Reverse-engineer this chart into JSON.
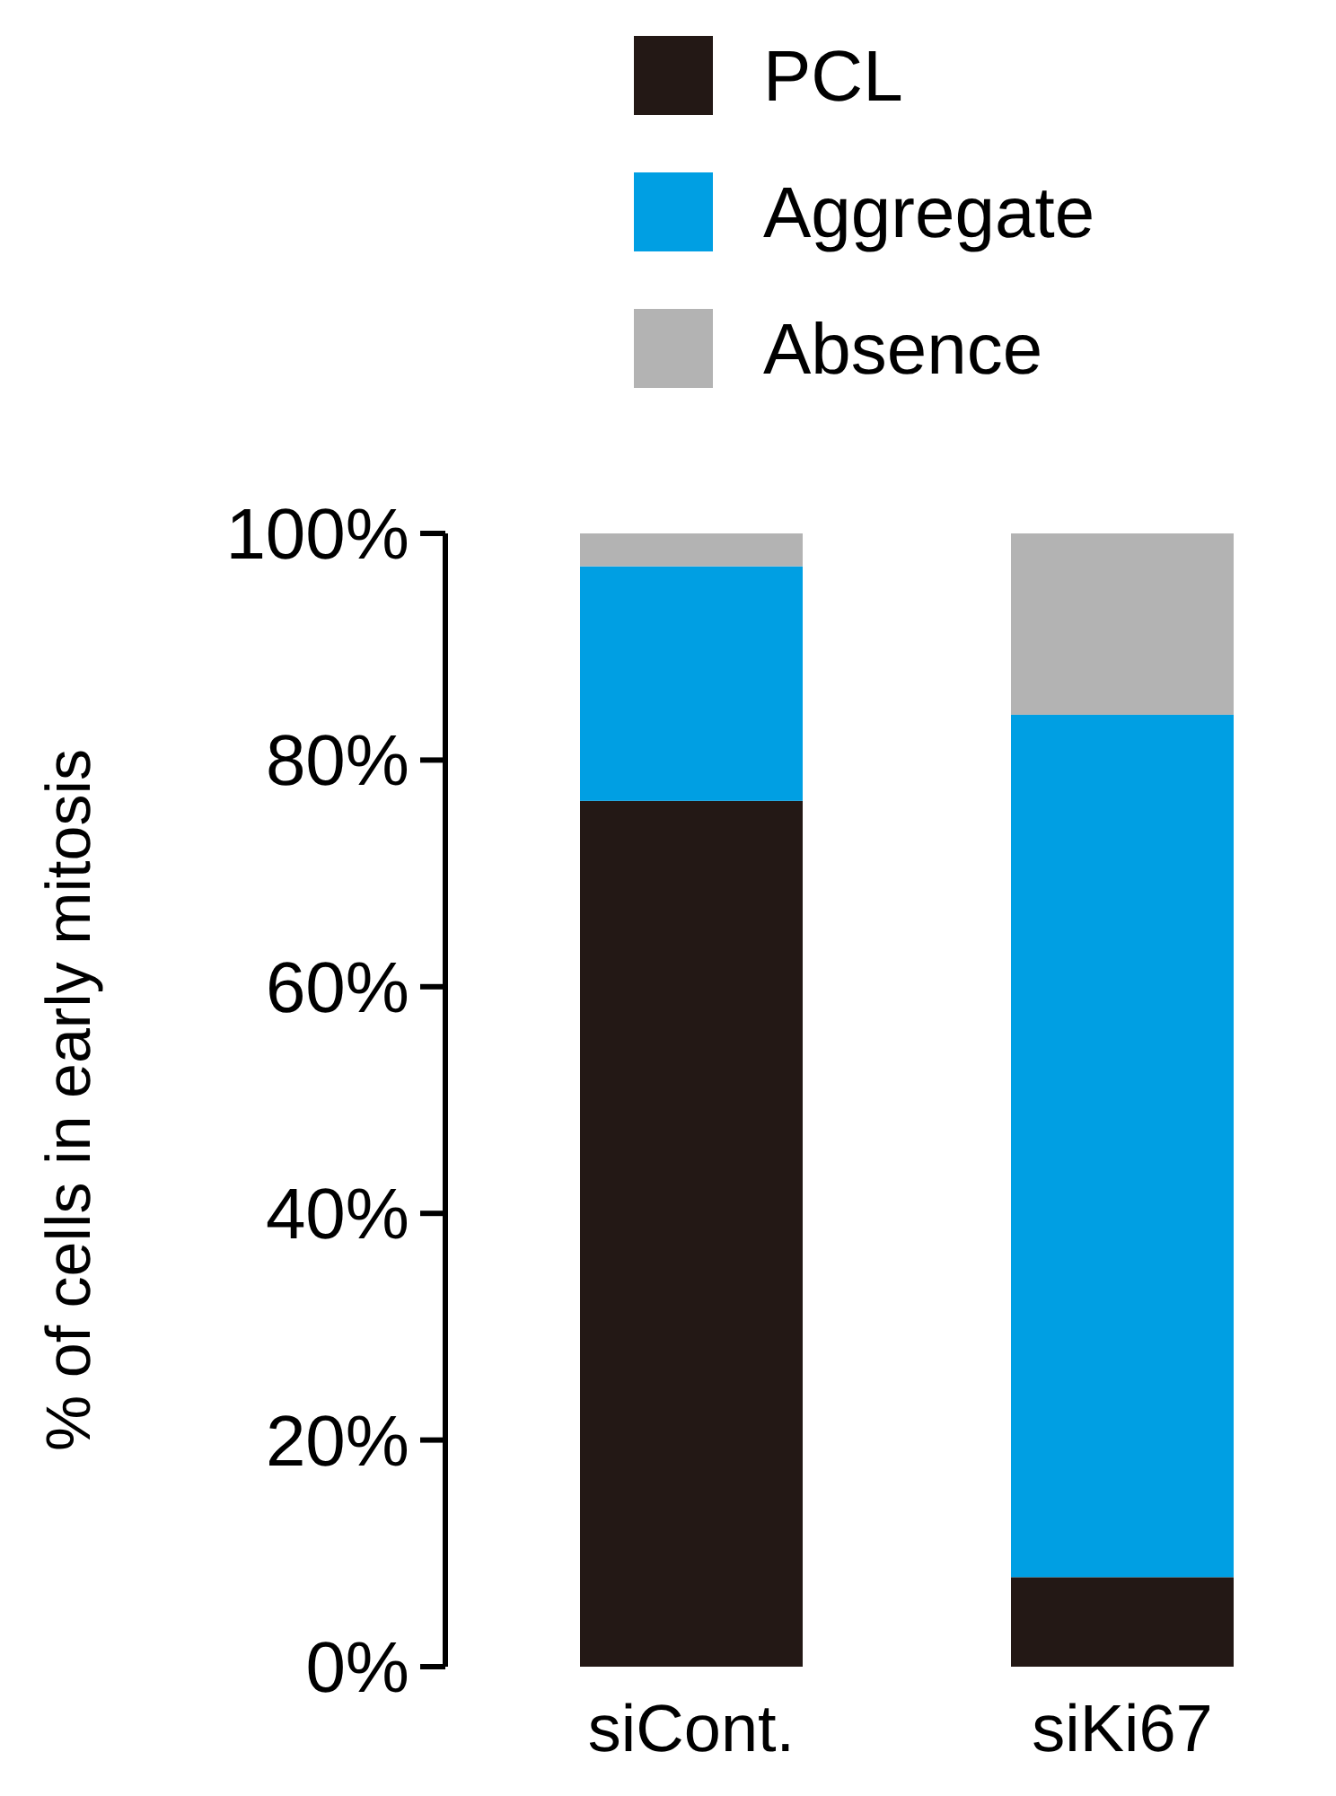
{
  "chart_data": {
    "type": "bar",
    "stacked": true,
    "ylabel": "% of cells in early mitosis",
    "categories": [
      "siCont.",
      "siKi67"
    ],
    "series": [
      {
        "name": "PCL",
        "color": "#231815",
        "values": [
          76.4,
          7.9
        ]
      },
      {
        "name": "Aggregate",
        "color": "#009fe3",
        "values": [
          20.7,
          76.1
        ]
      },
      {
        "name": "Absence",
        "color": "#b3b3b3",
        "values": [
          2.9,
          16.0
        ]
      }
    ],
    "ylim": [
      0,
      100
    ],
    "yticks": [
      {
        "value": 0,
        "label": "0%"
      },
      {
        "value": 20,
        "label": "20%"
      },
      {
        "value": 40,
        "label": "40%"
      },
      {
        "value": 60,
        "label": "60%"
      },
      {
        "value": 80,
        "label": "80%"
      },
      {
        "value": 100,
        "label": "100%"
      }
    ],
    "grid": false,
    "legend": "top"
  }
}
